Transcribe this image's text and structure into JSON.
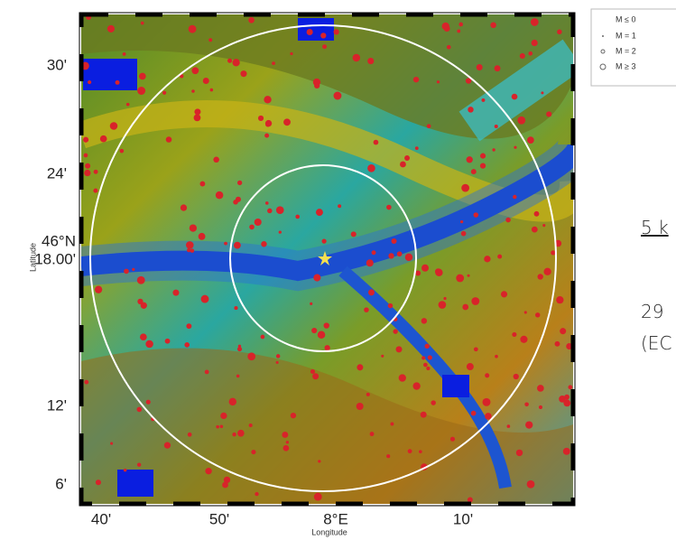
{
  "map": {
    "y_labels": [
      "30'",
      "24'",
      "46°N",
      "18.00'",
      "12'",
      "6'"
    ],
    "x_labels": [
      "40'",
      "50'",
      "8°E",
      "10'"
    ],
    "x_axis_title": "Longitude",
    "y_axis_title": "Latitude",
    "legend": [
      "M ≤ 0",
      "M = 1",
      "M = 2",
      "M ≥ 3"
    ]
  },
  "side_text": [
    "5 k",
    "29",
    "(EC"
  ]
}
